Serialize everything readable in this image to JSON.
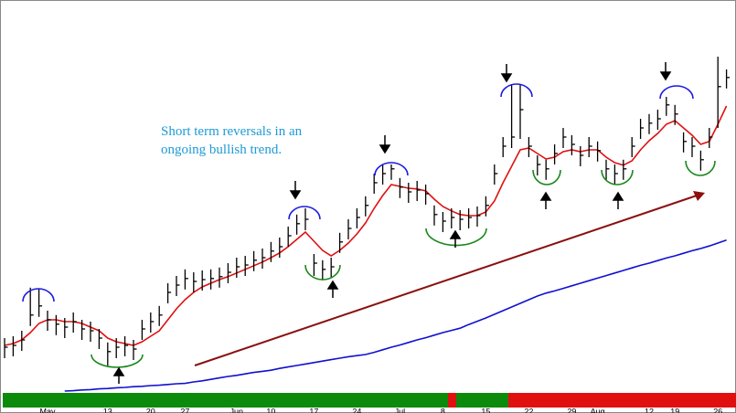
{
  "chart_data": {
    "type": "ohlc",
    "annotations": [
      "Short term reversals in an",
      "ongoing bullish trend."
    ],
    "color": "#000000",
    "ylim": [
      0,
      107
    ],
    "categories": [
      null,
      null,
      null,
      null,
      null,
      "May",
      null,
      null,
      null,
      null,
      null,
      null,
      "13",
      null,
      null,
      null,
      null,
      "20",
      null,
      null,
      null,
      "27",
      null,
      null,
      null,
      null,
      null,
      "Jun",
      null,
      null,
      null,
      "10",
      null,
      null,
      null,
      null,
      "17",
      null,
      null,
      null,
      null,
      "24",
      null,
      null,
      null,
      null,
      "Jul",
      null,
      null,
      null,
      null,
      "8",
      null,
      null,
      null,
      null,
      "15",
      null,
      null,
      null,
      null,
      "22",
      null,
      null,
      null,
      null,
      "29",
      null,
      null,
      "Aug",
      null,
      null,
      null,
      null,
      null,
      "12",
      null,
      null,
      "19",
      null,
      null,
      null,
      null,
      "26",
      null
    ],
    "close": [
      12,
      12.5,
      14,
      20.8,
      23.3,
      19.5,
      18.3,
      17.5,
      19,
      17,
      16.5,
      14.5,
      10.8,
      12,
      12.5,
      11.5,
      17,
      19,
      20.8,
      27,
      29,
      30.8,
      30,
      30.5,
      30.8,
      31.3,
      32.5,
      34,
      34.5,
      35.8,
      36.5,
      38.3,
      39.5,
      42.5,
      45.8,
      47,
      35,
      33.3,
      34,
      40.8,
      44.5,
      47.5,
      50.8,
      57,
      59.5,
      60.8,
      55.8,
      54.5,
      55,
      54,
      48.3,
      46.5,
      47.5,
      47,
      47.5,
      48,
      50.8,
      59.5,
      67,
      69.5,
      77,
      67,
      62,
      60.8,
      65,
      69.5,
      67.5,
      64.5,
      67,
      65.8,
      60.8,
      59.5,
      60.8,
      67,
      72,
      73.3,
      74.5,
      78.3,
      75.8,
      68.3,
      67,
      63.3,
      69.5,
      83.3,
      85.8
    ],
    "high": [
      14.5,
      15,
      16.5,
      28.3,
      28,
      22,
      20.8,
      20,
      21.5,
      19.5,
      19,
      17,
      13.3,
      14.5,
      15,
      14,
      19.5,
      21.5,
      23.3,
      29.5,
      31.5,
      33.3,
      32.5,
      33,
      33.3,
      33.8,
      35,
      36.5,
      37,
      38.3,
      39,
      40.8,
      42,
      45,
      48.3,
      50,
      37.5,
      35.8,
      36.5,
      43.3,
      47,
      50,
      53.3,
      59.5,
      62,
      62,
      58.3,
      57,
      57.5,
      56.5,
      50.8,
      49,
      50,
      49.5,
      50,
      50.5,
      53.3,
      62,
      69.5,
      84,
      84,
      69.5,
      64.5,
      63.3,
      67.5,
      72,
      70,
      67,
      69.5,
      68.3,
      63.3,
      62,
      63.3,
      69.5,
      74.5,
      75.8,
      77,
      80.5,
      78.3,
      70.8,
      69.5,
      65.8,
      72,
      91.5,
      88
    ],
    "low": [
      9,
      9.5,
      11,
      17.8,
      20.3,
      16.5,
      15.3,
      14.5,
      16,
      14,
      13.5,
      11.5,
      7,
      9,
      9.5,
      8.5,
      14,
      16,
      17.8,
      24,
      26,
      27.8,
      27,
      27.5,
      27.8,
      28.3,
      29.5,
      31,
      31.5,
      32.8,
      33.5,
      35.3,
      36.5,
      39.5,
      42.8,
      44,
      31.5,
      30.3,
      31,
      37.8,
      41.5,
      44.5,
      47.8,
      54,
      56.5,
      57.8,
      52.8,
      51.5,
      52,
      51,
      45.3,
      43.5,
      44.5,
      44,
      44.5,
      45,
      47.8,
      56.5,
      64,
      66.5,
      69,
      64,
      59,
      57.8,
      62,
      66.5,
      64.5,
      61.5,
      64,
      62.8,
      57.8,
      56.5,
      57.8,
      64,
      69,
      70.3,
      71.5,
      75.3,
      72.8,
      65.3,
      64,
      60.3,
      66.5,
      72,
      82.8
    ],
    "ma_lines": [
      {
        "color": "#e01010",
        "values": [
          12.5,
          13,
          14,
          16,
          18.5,
          19.5,
          19.5,
          19,
          19,
          18.5,
          17.5,
          16.5,
          14.5,
          13.5,
          13,
          12.5,
          13.5,
          15,
          16.5,
          19.5,
          22.5,
          25,
          27,
          28.5,
          29.5,
          30.5,
          31.3,
          32.3,
          33.3,
          34.3,
          35.3,
          36.5,
          37.8,
          39.5,
          41.5,
          43.5,
          41,
          38.5,
          37,
          38.5,
          40.5,
          43,
          46,
          50,
          53.5,
          56.5,
          56,
          55.5,
          55.3,
          54.8,
          52.5,
          50.5,
          49.3,
          48.3,
          48,
          48,
          49,
          52,
          57,
          61.5,
          66,
          66.5,
          65,
          63.5,
          64,
          65.5,
          66,
          65.5,
          66,
          66,
          64,
          62.5,
          61.8,
          63,
          66,
          68.5,
          70.5,
          73,
          74,
          72,
          70,
          67.5,
          68.3,
          73,
          78
        ]
      },
      {
        "color": "#1010d0",
        "values": [
          null,
          null,
          null,
          null,
          null,
          null,
          null,
          0,
          0.1,
          0.3,
          0.4,
          0.6,
          0.7,
          0.9,
          1,
          1.2,
          1.3,
          1.5,
          1.6,
          1.8,
          2,
          2.1,
          2.5,
          2.8,
          3.2,
          3.6,
          4,
          4.3,
          4.7,
          5.1,
          5.4,
          5.7,
          6.2,
          6.6,
          7,
          7.4,
          7.8,
          8.2,
          8.6,
          9,
          9.4,
          9.7,
          10,
          10.6,
          11.3,
          12,
          12.6,
          13.3,
          14,
          14.6,
          15.3,
          16,
          16.6,
          17.2,
          18.2,
          19.1,
          20,
          21,
          22,
          23,
          24,
          25,
          26,
          26.8,
          27.4,
          28.1,
          28.8,
          29.5,
          30.2,
          30.9,
          31.6,
          32.3,
          33,
          33.7,
          34.4,
          35,
          35.7,
          36.4,
          37,
          37.7,
          38.4,
          39,
          39.7,
          40.5,
          41.3
        ]
      }
    ]
  }
}
